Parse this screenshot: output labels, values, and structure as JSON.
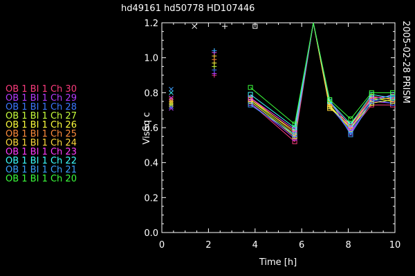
{
  "chart_data": {
    "type": "line",
    "title": "hd49161   hd50778   HD107446",
    "side_label": "2005-02-28 PRISM",
    "xlabel": "Time [h]",
    "ylabel": "VisSq c",
    "xlim": [
      0,
      10
    ],
    "ylim": [
      0,
      1.2
    ],
    "xticks": [
      "0",
      "2",
      "4",
      "6",
      "8",
      "10"
    ],
    "yticks": [
      "0.0",
      "0.2",
      "0.4",
      "0.6",
      "0.8",
      "1.0",
      "1.2"
    ],
    "calibrator_markers": [
      {
        "symbol": "x",
        "x": 1.4,
        "y": 1.18
      },
      {
        "symbol": "+",
        "x": 2.7,
        "y": 1.18
      },
      {
        "symbol": "square",
        "x": 4.0,
        "y": 1.18
      }
    ],
    "calibrators": {
      "x_symbol": {
        "x": 0.4,
        "values": [
          0.72,
          0.71,
          0.72,
          0.73,
          0.74,
          0.76,
          0.75,
          0.77,
          0.8,
          0.82
        ]
      },
      "plus_symbol": {
        "x": 2.25,
        "values": [
          0.9,
          0.91,
          0.93,
          0.95,
          0.97,
          0.99,
          1.01,
          1.03,
          1.04,
          1.04
        ]
      }
    },
    "x": [
      3.8,
      5.7,
      6.5,
      7.2,
      8.1,
      9.0,
      9.9
    ],
    "series": [
      {
        "name": "OB 1 BI 1 Ch 30",
        "color": "#ff3c7e",
        "values": [
          0.74,
          0.52,
          1.2,
          0.73,
          0.58,
          0.73,
          0.73
        ]
      },
      {
        "name": "OB 1 BI 1 Ch 29",
        "color": "#b43cff",
        "values": [
          0.74,
          0.54,
          1.2,
          0.73,
          0.57,
          0.75,
          0.74
        ]
      },
      {
        "name": "OB 1 BI 1 Ch 28",
        "color": "#3c78ff",
        "values": [
          0.75,
          0.55,
          1.2,
          0.72,
          0.58,
          0.76,
          0.74
        ]
      },
      {
        "name": "OB 1 BI 1 Ch 27",
        "color": "#c8ff3c",
        "values": [
          0.76,
          0.56,
          1.2,
          0.73,
          0.59,
          0.77,
          0.75
        ]
      },
      {
        "name": "OB 1 BI 1 Ch 26",
        "color": "#ffff3c",
        "values": [
          0.75,
          0.55,
          1.2,
          0.72,
          0.6,
          0.74,
          0.76
        ]
      },
      {
        "name": "OB 1 BI 1 Ch 25",
        "color": "#ff8c3c",
        "values": [
          0.77,
          0.57,
          1.2,
          0.74,
          0.61,
          0.78,
          0.76
        ]
      },
      {
        "name": "OB 1 BI 1 Ch 24",
        "color": "#ffd83c",
        "values": [
          0.76,
          0.58,
          1.2,
          0.71,
          0.62,
          0.76,
          0.77
        ]
      },
      {
        "name": "OB 1 BI 1 Ch 23",
        "color": "#ff3cff",
        "values": [
          0.77,
          0.59,
          1.2,
          0.75,
          0.6,
          0.77,
          0.78
        ]
      },
      {
        "name": "OB 1 BI 1 Ch 22",
        "color": "#3cffff",
        "values": [
          0.79,
          0.6,
          1.2,
          0.75,
          0.62,
          0.79,
          0.77
        ]
      },
      {
        "name": "OB 1 BI 1 Ch 21",
        "color": "#3ca0ff",
        "values": [
          0.73,
          0.56,
          1.2,
          0.76,
          0.56,
          0.75,
          0.79
        ]
      },
      {
        "name": "OB 1 BI 1 Ch 20",
        "color": "#3cff3c",
        "values": [
          0.83,
          0.62,
          1.2,
          0.76,
          0.65,
          0.8,
          0.8
        ]
      }
    ]
  }
}
